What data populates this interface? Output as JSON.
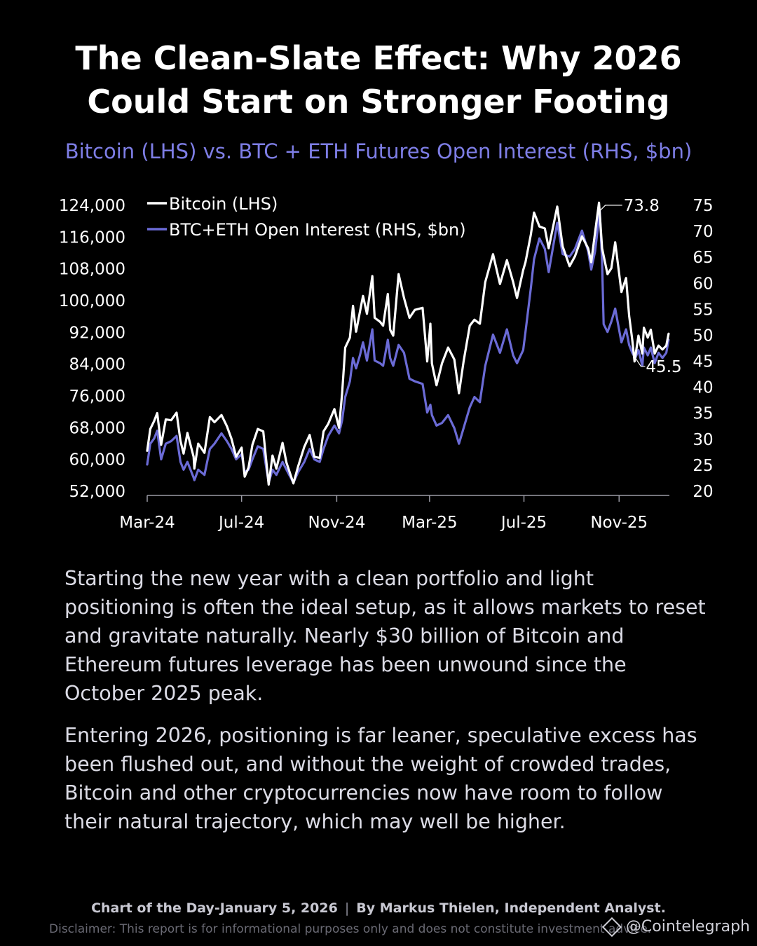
{
  "header": {
    "title_line1": "The Clean-Slate Effect: Why 2026",
    "title_line2": "Could Start on Stronger Footing",
    "subtitle": "Bitcoin (LHS) vs. BTC + ETH Futures Open Interest (RHS, $bn)"
  },
  "colors": {
    "background": "#000000",
    "bitcoin_line": "#ffffff",
    "oi_line": "#6b6bd6",
    "subtitle": "#7e7ee6"
  },
  "chart_data": {
    "type": "line",
    "x_ticks": [
      "Mar-24",
      "Jul-24",
      "Nov-24",
      "Mar-25",
      "Jul-25",
      "Nov-25"
    ],
    "x_tick_dates": [
      "2024-03-01",
      "2024-07-01",
      "2024-11-01",
      "2025-03-01",
      "2025-07-01",
      "2025-11-01"
    ],
    "x_range": [
      "2024-03-01",
      "2026-01-05"
    ],
    "left_axis": {
      "ticks": [
        "124,000",
        "116,000",
        "108,000",
        "100,000",
        "92,000",
        "84,000",
        "76,000",
        "68,000",
        "60,000",
        "52,000"
      ],
      "ylim": [
        52000,
        124000
      ]
    },
    "right_axis": {
      "ticks": [
        "75",
        "70",
        "65",
        "60",
        "55",
        "50",
        "45",
        "40",
        "35",
        "30",
        "25",
        "20"
      ],
      "ylim": [
        20,
        75
      ]
    },
    "legend": [
      "Bitcoin (LHS)",
      "BTC+ETH Open Interest (RHS, $bn)"
    ],
    "legend_position": "top-left",
    "grid": false,
    "annotations": [
      {
        "text": "73.8",
        "series": "BTC+ETH Open Interest (RHS, $bn)",
        "date": "2025-10-07",
        "value": 73.8
      },
      {
        "text": "45.5",
        "series": "BTC+ETH Open Interest (RHS, $bn)",
        "date": "2025-11-22",
        "value": 45.5
      }
    ],
    "series": [
      {
        "name": "Bitcoin (LHS)",
        "axis": "left",
        "points": [
          [
            "2024-03-01",
            62000
          ],
          [
            "2024-03-05",
            67500
          ],
          [
            "2024-03-10",
            69500
          ],
          [
            "2024-03-14",
            71500
          ],
          [
            "2024-03-19",
            63500
          ],
          [
            "2024-03-25",
            69900
          ],
          [
            "2024-04-01",
            69700
          ],
          [
            "2024-04-08",
            71600
          ],
          [
            "2024-04-13",
            64500
          ],
          [
            "2024-04-17",
            61300
          ],
          [
            "2024-04-22",
            66500
          ],
          [
            "2024-04-30",
            60500
          ],
          [
            "2024-05-01",
            57500
          ],
          [
            "2024-05-06",
            63800
          ],
          [
            "2024-05-14",
            61500
          ],
          [
            "2024-05-21",
            70500
          ],
          [
            "2024-05-27",
            69200
          ],
          [
            "2024-06-05",
            71000
          ],
          [
            "2024-06-12",
            68200
          ],
          [
            "2024-06-18",
            65000
          ],
          [
            "2024-06-24",
            60500
          ],
          [
            "2024-07-01",
            62800
          ],
          [
            "2024-07-05",
            55500
          ],
          [
            "2024-07-10",
            57800
          ],
          [
            "2024-07-15",
            63500
          ],
          [
            "2024-07-22",
            67500
          ],
          [
            "2024-07-29",
            66900
          ],
          [
            "2024-08-05",
            53500
          ],
          [
            "2024-08-10",
            60800
          ],
          [
            "2024-08-15",
            57500
          ],
          [
            "2024-08-23",
            64000
          ],
          [
            "2024-08-28",
            59000
          ],
          [
            "2024-09-06",
            53800
          ],
          [
            "2024-09-12",
            58000
          ],
          [
            "2024-09-20",
            63000
          ],
          [
            "2024-09-27",
            66000
          ],
          [
            "2024-10-03",
            60500
          ],
          [
            "2024-10-10",
            60200
          ],
          [
            "2024-10-15",
            66900
          ],
          [
            "2024-10-21",
            68800
          ],
          [
            "2024-10-29",
            72500
          ],
          [
            "2024-11-04",
            67800
          ],
          [
            "2024-11-08",
            76500
          ],
          [
            "2024-11-12",
            88000
          ],
          [
            "2024-11-18",
            90500
          ],
          [
            "2024-11-22",
            98500
          ],
          [
            "2024-11-26",
            92000
          ],
          [
            "2024-12-01",
            97000
          ],
          [
            "2024-12-05",
            101000
          ],
          [
            "2024-12-10",
            96500
          ],
          [
            "2024-12-17",
            106000
          ],
          [
            "2024-12-20",
            95500
          ],
          [
            "2024-12-27",
            94500
          ],
          [
            "2024-12-31",
            93500
          ],
          [
            "2025-01-06",
            101500
          ],
          [
            "2025-01-09",
            92500
          ],
          [
            "2025-01-13",
            91000
          ],
          [
            "2025-01-20",
            106500
          ],
          [
            "2025-01-27",
            100500
          ],
          [
            "2025-02-03",
            95500
          ],
          [
            "2025-02-10",
            97500
          ],
          [
            "2025-02-20",
            98000
          ],
          [
            "2025-02-26",
            84500
          ],
          [
            "2025-03-02",
            94000
          ],
          [
            "2025-03-04",
            84000
          ],
          [
            "2025-03-10",
            78500
          ],
          [
            "2025-03-17",
            84000
          ],
          [
            "2025-03-25",
            88000
          ],
          [
            "2025-04-02",
            85000
          ],
          [
            "2025-04-08",
            76500
          ],
          [
            "2025-04-14",
            84500
          ],
          [
            "2025-04-22",
            93500
          ],
          [
            "2025-04-28",
            95000
          ],
          [
            "2025-05-05",
            94000
          ],
          [
            "2025-05-12",
            104500
          ],
          [
            "2025-05-22",
            111500
          ],
          [
            "2025-05-31",
            104000
          ],
          [
            "2025-06-09",
            110000
          ],
          [
            "2025-06-17",
            104500
          ],
          [
            "2025-06-22",
            100500
          ],
          [
            "2025-06-30",
            107500
          ],
          [
            "2025-07-03",
            109500
          ],
          [
            "2025-07-10",
            116500
          ],
          [
            "2025-07-14",
            122000
          ],
          [
            "2025-07-21",
            118500
          ],
          [
            "2025-07-28",
            118000
          ],
          [
            "2025-08-02",
            113000
          ],
          [
            "2025-08-13",
            123500
          ],
          [
            "2025-08-20",
            113500
          ],
          [
            "2025-08-29",
            108500
          ],
          [
            "2025-09-05",
            111000
          ],
          [
            "2025-09-14",
            116000
          ],
          [
            "2025-09-22",
            113000
          ],
          [
            "2025-09-26",
            109500
          ],
          [
            "2025-10-01",
            117000
          ],
          [
            "2025-10-06",
            124500
          ],
          [
            "2025-10-10",
            113000
          ],
          [
            "2025-10-17",
            106500
          ],
          [
            "2025-10-22",
            108000
          ],
          [
            "2025-10-27",
            114500
          ],
          [
            "2025-11-04",
            102000
          ],
          [
            "2025-11-10",
            105500
          ],
          [
            "2025-11-14",
            96000
          ],
          [
            "2025-11-18",
            90000
          ],
          [
            "2025-11-21",
            84500
          ],
          [
            "2025-11-26",
            91000
          ],
          [
            "2025-12-01",
            86500
          ],
          [
            "2025-12-03",
            93000
          ],
          [
            "2025-12-08",
            90500
          ],
          [
            "2025-12-12",
            92500
          ],
          [
            "2025-12-17",
            86500
          ],
          [
            "2025-12-22",
            88500
          ],
          [
            "2025-12-27",
            87500
          ],
          [
            "2026-01-01",
            88500
          ],
          [
            "2026-01-04",
            91500
          ]
        ]
      },
      {
        "name": "BTC+ETH Open Interest (RHS, $bn)",
        "axis": "right",
        "points": [
          [
            "2024-03-01",
            25
          ],
          [
            "2024-03-05",
            29
          ],
          [
            "2024-03-10",
            30
          ],
          [
            "2024-03-14",
            31.5
          ],
          [
            "2024-03-19",
            26
          ],
          [
            "2024-03-25",
            29
          ],
          [
            "2024-04-01",
            29.5
          ],
          [
            "2024-04-08",
            30.5
          ],
          [
            "2024-04-13",
            25.5
          ],
          [
            "2024-04-17",
            24
          ],
          [
            "2024-04-22",
            25.5
          ],
          [
            "2024-04-30",
            22.5
          ],
          [
            "2024-05-01",
            22
          ],
          [
            "2024-05-06",
            24
          ],
          [
            "2024-05-14",
            23
          ],
          [
            "2024-05-21",
            28
          ],
          [
            "2024-05-27",
            29
          ],
          [
            "2024-06-05",
            31
          ],
          [
            "2024-06-12",
            29.5
          ],
          [
            "2024-06-18",
            28
          ],
          [
            "2024-06-24",
            26
          ],
          [
            "2024-07-01",
            27
          ],
          [
            "2024-07-05",
            23.5
          ],
          [
            "2024-07-10",
            24
          ],
          [
            "2024-07-15",
            26
          ],
          [
            "2024-07-22",
            28.5
          ],
          [
            "2024-07-29",
            28
          ],
          [
            "2024-08-05",
            21.5
          ],
          [
            "2024-08-10",
            24
          ],
          [
            "2024-08-15",
            23
          ],
          [
            "2024-08-23",
            25.5
          ],
          [
            "2024-08-28",
            24
          ],
          [
            "2024-09-06",
            21.5
          ],
          [
            "2024-09-12",
            23.5
          ],
          [
            "2024-09-20",
            25.5
          ],
          [
            "2024-09-27",
            28
          ],
          [
            "2024-10-03",
            26
          ],
          [
            "2024-10-10",
            25.5
          ],
          [
            "2024-10-15",
            28
          ],
          [
            "2024-10-21",
            30.5
          ],
          [
            "2024-10-29",
            32.5
          ],
          [
            "2024-11-04",
            31
          ],
          [
            "2024-11-08",
            33.5
          ],
          [
            "2024-11-12",
            38
          ],
          [
            "2024-11-18",
            41
          ],
          [
            "2024-11-22",
            45.5
          ],
          [
            "2024-11-26",
            43.5
          ],
          [
            "2024-12-01",
            46
          ],
          [
            "2024-12-05",
            48.5
          ],
          [
            "2024-12-10",
            45
          ],
          [
            "2024-12-17",
            51
          ],
          [
            "2024-12-20",
            45
          ],
          [
            "2024-12-27",
            44.5
          ],
          [
            "2024-12-31",
            44
          ],
          [
            "2025-01-06",
            49
          ],
          [
            "2025-01-09",
            45.5
          ],
          [
            "2025-01-13",
            44
          ],
          [
            "2025-01-20",
            48
          ],
          [
            "2025-01-27",
            46.5
          ],
          [
            "2025-02-03",
            41.5
          ],
          [
            "2025-02-10",
            41
          ],
          [
            "2025-02-20",
            40.5
          ],
          [
            "2025-02-26",
            35
          ],
          [
            "2025-03-02",
            36.5
          ],
          [
            "2025-03-04",
            34.5
          ],
          [
            "2025-03-10",
            32.5
          ],
          [
            "2025-03-17",
            33
          ],
          [
            "2025-03-25",
            34.5
          ],
          [
            "2025-04-02",
            32
          ],
          [
            "2025-04-08",
            29
          ],
          [
            "2025-04-14",
            32
          ],
          [
            "2025-04-22",
            36
          ],
          [
            "2025-04-28",
            38
          ],
          [
            "2025-05-05",
            37
          ],
          [
            "2025-05-12",
            44
          ],
          [
            "2025-05-22",
            50
          ],
          [
            "2025-05-31",
            46.5
          ],
          [
            "2025-06-09",
            51
          ],
          [
            "2025-06-17",
            46
          ],
          [
            "2025-06-22",
            44.5
          ],
          [
            "2025-06-30",
            47
          ],
          [
            "2025-07-03",
            50.5
          ],
          [
            "2025-07-10",
            59
          ],
          [
            "2025-07-14",
            64.5
          ],
          [
            "2025-07-21",
            68.5
          ],
          [
            "2025-07-28",
            66.5
          ],
          [
            "2025-08-02",
            62
          ],
          [
            "2025-08-13",
            71.5
          ],
          [
            "2025-08-20",
            65.5
          ],
          [
            "2025-08-29",
            65
          ],
          [
            "2025-09-05",
            66.5
          ],
          [
            "2025-09-14",
            70
          ],
          [
            "2025-09-22",
            66
          ],
          [
            "2025-09-26",
            62.5
          ],
          [
            "2025-10-01",
            66
          ],
          [
            "2025-10-07",
            73.8
          ],
          [
            "2025-10-10",
            64
          ],
          [
            "2025-10-12",
            52
          ],
          [
            "2025-10-17",
            50.5
          ],
          [
            "2025-10-22",
            52.5
          ],
          [
            "2025-10-27",
            55
          ],
          [
            "2025-11-04",
            48.5
          ],
          [
            "2025-11-10",
            51
          ],
          [
            "2025-11-14",
            48
          ],
          [
            "2025-11-18",
            46.5
          ],
          [
            "2025-11-22",
            45.5
          ],
          [
            "2025-11-26",
            47
          ],
          [
            "2025-12-01",
            44
          ],
          [
            "2025-12-03",
            47.5
          ],
          [
            "2025-12-08",
            46
          ],
          [
            "2025-12-12",
            47.5
          ],
          [
            "2025-12-17",
            44.5
          ],
          [
            "2025-12-22",
            46.5
          ],
          [
            "2025-12-27",
            45.5
          ],
          [
            "2026-01-01",
            46.5
          ],
          [
            "2026-01-04",
            49
          ]
        ]
      }
    ]
  },
  "body": {
    "paragraph1": "Starting the new year with a clean portfolio and light positioning is often the ideal setup, as it allows markets to reset and gravitate naturally. Nearly $30 billion of Bitcoin and Ethereum futures leverage has been unwound since the October 2025 peak.",
    "paragraph2": "Entering 2026, positioning is far leaner, speculative excess has been flushed out, and without the weight of crowded trades, Bitcoin and other cryptocurrencies now have room to follow their natural trajectory, which may well be higher."
  },
  "footer": {
    "chart_of_day": "Chart of the Day-January 5, 2026",
    "separator": "|",
    "author": "By Markus Thielen, Independent Analyst.",
    "disclaimer": "Disclaimer: This report is for informational purposes only and does not constitute investment advice.",
    "logo_text": "@Cointelegraph",
    "logo_icon": "cointelegraph-logo-icon"
  }
}
